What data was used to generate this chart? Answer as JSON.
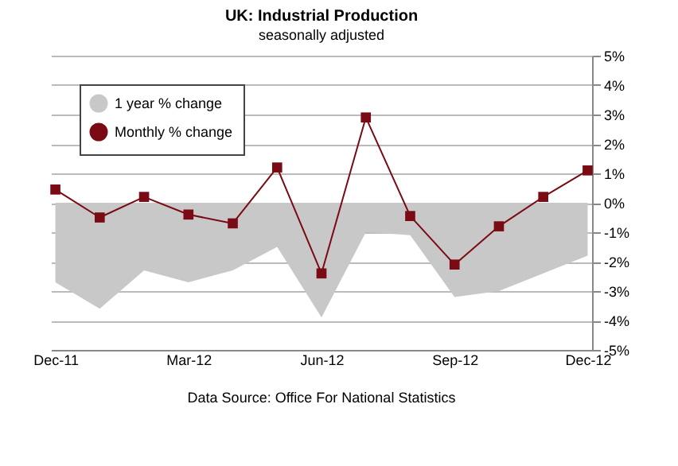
{
  "chart_data": {
    "type": "line",
    "title": "UK: Industrial Production",
    "subtitle": "seasonally adjusted",
    "categories": [
      "Dec-11",
      null,
      null,
      "Mar-12",
      null,
      null,
      "Jun-12",
      null,
      null,
      "Sep-12",
      null,
      null,
      "Dec-12"
    ],
    "series": [
      {
        "name": "1 year % change",
        "type": "area",
        "color": "#c8c8c8",
        "values": [
          -2.7,
          -3.6,
          -2.3,
          -2.7,
          -2.3,
          -1.5,
          -3.9,
          -1.0,
          -1.1,
          -3.2,
          -3.0,
          -2.4,
          -1.8
        ]
      },
      {
        "name": "Monthly % change",
        "color": "#7a0a14",
        "marker": "square",
        "values": [
          0.45,
          -0.5,
          0.2,
          -0.4,
          -0.7,
          1.2,
          -2.4,
          2.9,
          -0.45,
          -2.1,
          -0.8,
          0.2,
          1.1
        ]
      }
    ],
    "ylim": [
      -5,
      5
    ],
    "yticks": [
      {
        "value": -5,
        "label": "-5%"
      },
      {
        "value": -4,
        "label": "-4%"
      },
      {
        "value": -3,
        "label": "-3%"
      },
      {
        "value": -2,
        "label": "-2%"
      },
      {
        "value": -1,
        "label": "-1%"
      },
      {
        "value": 0,
        "label": "0%"
      },
      {
        "value": 1,
        "label": "1%"
      },
      {
        "value": 2,
        "label": "2%"
      },
      {
        "value": 3,
        "label": "3%"
      },
      {
        "value": 4,
        "label": "4%"
      },
      {
        "value": 5,
        "label": "5%"
      }
    ],
    "grid": "y",
    "legend": "top left",
    "annotations": [
      "Data Source: Office For National Statistics"
    ]
  }
}
